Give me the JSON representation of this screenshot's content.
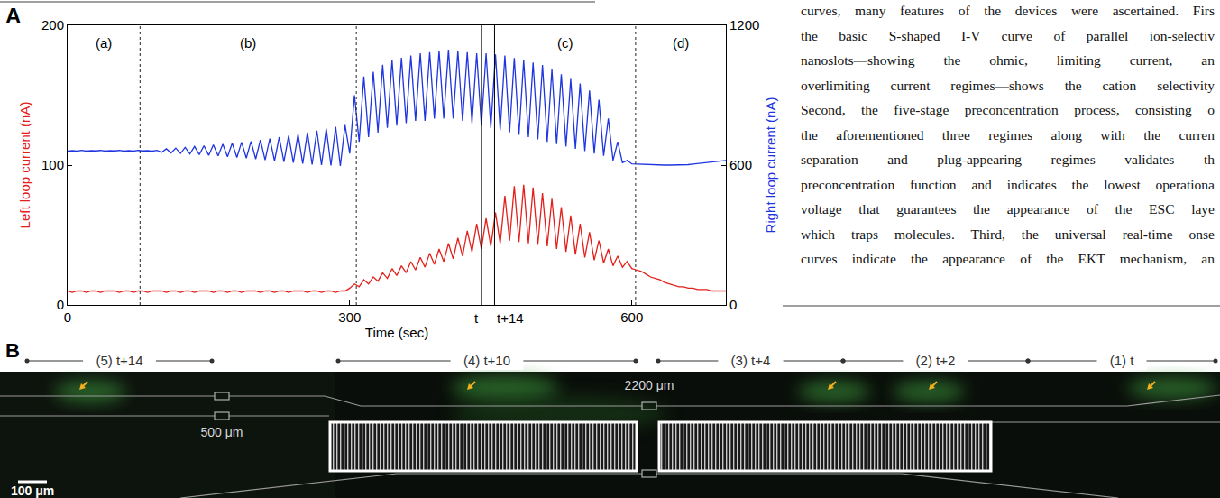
{
  "chart_data": {
    "type": "line",
    "panel_label": "A",
    "x_label": "Time (sec)",
    "y_label": "Left loop current (nA)",
    "y2_label": "Right loop current (nA)",
    "xlim": [
      0,
      700
    ],
    "xticks": [
      0,
      300,
      600
    ],
    "ylim": [
      0,
      200
    ],
    "yticks": [
      0,
      100,
      200
    ],
    "y2lim": [
      0,
      1200
    ],
    "y2ticks": [
      0,
      600,
      1200
    ],
    "grid": false,
    "x": [
      0,
      5,
      10,
      15,
      20,
      25,
      30,
      35,
      40,
      45,
      50,
      55,
      60,
      65,
      70,
      75,
      80,
      85,
      90,
      95,
      100,
      105,
      110,
      115,
      120,
      125,
      130,
      135,
      140,
      145,
      150,
      155,
      160,
      165,
      170,
      175,
      180,
      185,
      190,
      195,
      200,
      205,
      210,
      215,
      220,
      225,
      230,
      235,
      240,
      245,
      250,
      255,
      260,
      265,
      270,
      275,
      280,
      285,
      290,
      295,
      300,
      305,
      310,
      315,
      320,
      325,
      330,
      335,
      340,
      345,
      350,
      355,
      360,
      365,
      370,
      375,
      380,
      385,
      390,
      395,
      400,
      405,
      410,
      415,
      420,
      425,
      430,
      435,
      440,
      445,
      450,
      455,
      460,
      465,
      470,
      475,
      480,
      485,
      490,
      495,
      500,
      505,
      510,
      515,
      520,
      525,
      530,
      535,
      540,
      545,
      550,
      555,
      560,
      565,
      570,
      575,
      580,
      585,
      590,
      595,
      600,
      605,
      610,
      615,
      620,
      625,
      630,
      635,
      640,
      645,
      650,
      655,
      660,
      665,
      670,
      675,
      680,
      685,
      690,
      695,
      700
    ],
    "series": [
      {
        "color": "#e3201b",
        "values": [
          10,
          9,
          10,
          10,
          9,
          10,
          10,
          9,
          10,
          10,
          10,
          9,
          10,
          10,
          9,
          10,
          10,
          9,
          10,
          10,
          10,
          9,
          10,
          10,
          9,
          10,
          10,
          9,
          10,
          10,
          10,
          9,
          10,
          10,
          9,
          10,
          10,
          9,
          10,
          10,
          10,
          9,
          10,
          10,
          9,
          10,
          10,
          9,
          10,
          10,
          10,
          9,
          10,
          10,
          9,
          10,
          10,
          9,
          10,
          10,
          12,
          15,
          13,
          18,
          15,
          20,
          17,
          23,
          19,
          26,
          21,
          28,
          23,
          31,
          25,
          34,
          27,
          37,
          29,
          40,
          31,
          44,
          33,
          48,
          35,
          53,
          38,
          58,
          40,
          62,
          42,
          66,
          44,
          78,
          46,
          85,
          45,
          86,
          44,
          84,
          43,
          80,
          42,
          76,
          40,
          70,
          38,
          64,
          36,
          58,
          34,
          52,
          32,
          46,
          30,
          40,
          28,
          35,
          27,
          31,
          26,
          25,
          24,
          22,
          20,
          19,
          18,
          16,
          15,
          14,
          13,
          13,
          12,
          12,
          11,
          11,
          11,
          10,
          10,
          10,
          10
        ]
      },
      {
        "color": "#1f35e0",
        "axis": "y2",
        "values": [
          660,
          662,
          660,
          663,
          660,
          662,
          661,
          663,
          660,
          662,
          661,
          663,
          660,
          662,
          660,
          663,
          661,
          662,
          660,
          663,
          655,
          670,
          652,
          673,
          650,
          676,
          648,
          680,
          645,
          683,
          642,
          687,
          640,
          690,
          636,
          694,
          633,
          698,
          630,
          702,
          626,
          708,
          622,
          714,
          618,
          720,
          614,
          726,
          610,
          732,
          606,
          740,
          602,
          748,
          600,
          756,
          598,
          764,
          596,
          772,
          650,
          900,
          700,
          980,
          720,
          1000,
          740,
          1030,
          760,
          1050,
          770,
          1060,
          780,
          1070,
          790,
          1080,
          790,
          1085,
          800,
          1090,
          800,
          1095,
          800,
          1090,
          790,
          1085,
          780,
          1080,
          770,
          1080,
          760,
          1075,
          750,
          1070,
          740,
          1060,
          730,
          1050,
          720,
          1040,
          710,
          1030,
          700,
          1010,
          690,
          990,
          680,
          970,
          670,
          950,
          660,
          920,
          650,
          880,
          640,
          800,
          620,
          700,
          610,
          620,
          605,
          604,
          603,
          602,
          602,
          601,
          601,
          600,
          600,
          600,
          600,
          601,
          602,
          604,
          606,
          608,
          610,
          612,
          615,
          618,
          620
        ]
      }
    ],
    "regions": {
      "boundaries": [
        77,
        307,
        604
      ],
      "labels": [
        "(a)",
        "(b)",
        "(c)",
        "(d)"
      ]
    },
    "markers": [
      {
        "value": 440,
        "label": "t"
      },
      {
        "value": 454,
        "label": "t+14"
      }
    ]
  },
  "text": {
    "lines": [
      "curves, many features of the devices were ascertained. Firs",
      "the basic S-shaped I-V curve of parallel ion-selectiv",
      "nanoslots—showing the ohmic, limiting current, an",
      "overlimiting current regimes—shows the cation selectivity",
      "Second, the five-stage preconcentration process, consisting o",
      "the aforementioned three regimes along with the curren",
      "separation and plug-appearing regimes validates th",
      "preconcentration function and indicates the lowest operationa",
      "voltage that guarantees the appearance of the ESC laye",
      "which traps molecules. Third, the universal real-time onse",
      "curves indicate the appearance of the EKT mechanism, an"
    ]
  },
  "panel_b": {
    "label": "B",
    "frames": [
      "(5) t+14",
      "(4) t+10",
      "(3) t+4",
      "(2) t+2",
      "(1) t"
    ],
    "dimension_labels": [
      "2200 μm",
      "500 μm"
    ],
    "scale_bar": "100 μm"
  }
}
